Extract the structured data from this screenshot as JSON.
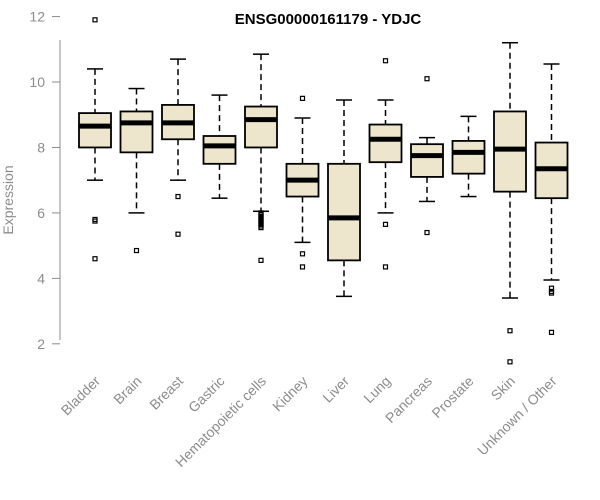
{
  "chart_data": {
    "type": "boxplot",
    "title": "ENSG00000161179 - YDJC",
    "xlabel": "",
    "ylabel": "Expression",
    "ylim": [
      1.2,
      12.2
    ],
    "yticks": [
      2,
      4,
      6,
      8,
      10,
      12
    ],
    "colors": {
      "box_fill": "#EDE6CC",
      "stroke": "#000000",
      "axis": "#8C8C8C"
    },
    "categories": [
      "Bladder",
      "Brain",
      "Breast",
      "Gastric",
      "Hematopoietic cells",
      "Kidney",
      "Liver",
      "Lung",
      "Pancreas",
      "Prostate",
      "Skin",
      "Unknown / Other"
    ],
    "boxes": [
      {
        "name": "Bladder",
        "lower_whisker": 7.0,
        "q1": 8.0,
        "median": 8.65,
        "q3": 9.05,
        "upper_whisker": 10.4,
        "outliers": [
          11.9,
          5.8,
          5.75,
          4.6
        ]
      },
      {
        "name": "Brain",
        "lower_whisker": 6.0,
        "q1": 7.85,
        "median": 8.75,
        "q3": 9.1,
        "upper_whisker": 9.8,
        "outliers": [
          4.85
        ]
      },
      {
        "name": "Breast",
        "lower_whisker": 7.0,
        "q1": 8.25,
        "median": 8.75,
        "q3": 9.3,
        "upper_whisker": 10.7,
        "outliers": [
          6.5,
          5.35
        ]
      },
      {
        "name": "Gastric",
        "lower_whisker": 6.45,
        "q1": 7.5,
        "median": 8.05,
        "q3": 8.35,
        "upper_whisker": 9.6,
        "outliers": []
      },
      {
        "name": "Hematopoietic cells",
        "lower_whisker": 6.05,
        "q1": 8.0,
        "median": 8.85,
        "q3": 9.25,
        "upper_whisker": 10.85,
        "outliers": [
          6.0,
          5.95,
          5.9,
          5.85,
          5.8,
          5.75,
          5.7,
          5.65,
          5.6,
          5.55,
          4.55
        ]
      },
      {
        "name": "Kidney",
        "lower_whisker": 5.1,
        "q1": 6.5,
        "median": 7.0,
        "q3": 7.5,
        "upper_whisker": 8.9,
        "outliers": [
          9.5,
          4.75,
          4.35
        ]
      },
      {
        "name": "Liver",
        "lower_whisker": 3.45,
        "q1": 4.55,
        "median": 5.85,
        "q3": 7.5,
        "upper_whisker": 9.45,
        "outliers": []
      },
      {
        "name": "Lung",
        "lower_whisker": 6.0,
        "q1": 7.55,
        "median": 8.25,
        "q3": 8.7,
        "upper_whisker": 9.45,
        "outliers": [
          10.65,
          5.65,
          4.35
        ]
      },
      {
        "name": "Pancreas",
        "lower_whisker": 6.35,
        "q1": 7.1,
        "median": 7.75,
        "q3": 8.1,
        "upper_whisker": 8.3,
        "outliers": [
          10.1,
          5.4
        ]
      },
      {
        "name": "Prostate",
        "lower_whisker": 6.5,
        "q1": 7.2,
        "median": 7.85,
        "q3": 8.2,
        "upper_whisker": 8.95,
        "outliers": []
      },
      {
        "name": "Skin",
        "lower_whisker": 3.4,
        "q1": 6.65,
        "median": 7.95,
        "q3": 9.1,
        "upper_whisker": 11.2,
        "outliers": [
          2.4,
          1.45
        ]
      },
      {
        "name": "Unknown / Other",
        "lower_whisker": 3.95,
        "q1": 6.45,
        "median": 7.35,
        "q3": 8.15,
        "upper_whisker": 10.55,
        "outliers": [
          3.7,
          3.6,
          3.55,
          2.35
        ]
      }
    ]
  }
}
